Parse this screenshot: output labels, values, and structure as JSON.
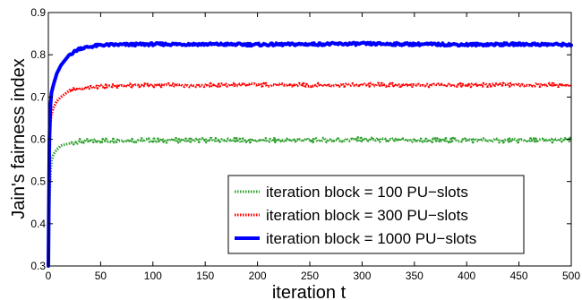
{
  "chart_data": {
    "type": "line",
    "title": "",
    "xlabel": "iteration t",
    "ylabel": "Jain's fairness index",
    "xlim": [
      0,
      500
    ],
    "ylim": [
      0.3,
      0.9
    ],
    "x_ticks": [
      0,
      50,
      100,
      150,
      200,
      250,
      300,
      350,
      400,
      450,
      500
    ],
    "y_ticks": [
      0.3,
      0.4,
      0.5,
      0.6,
      0.7,
      0.8,
      0.9
    ],
    "x_tick_labels": [
      "0",
      "50",
      "100",
      "150",
      "200",
      "250",
      "300",
      "350",
      "400",
      "450",
      "500"
    ],
    "y_tick_labels": [
      "0.3",
      "0.4",
      "0.5",
      "0.6",
      "0.7",
      "0.8",
      "0.9"
    ],
    "grid": false,
    "legend_position": "bottom-right",
    "series": [
      {
        "name": "iteration block = 100 PU−slots",
        "color": "#2ea02e",
        "style": "dotted",
        "x": [
          0,
          1,
          2,
          3,
          5,
          8,
          12,
          20,
          30,
          50,
          75,
          100,
          150,
          200,
          250,
          300,
          350,
          400,
          450,
          500
        ],
        "y": [
          0.3,
          0.45,
          0.52,
          0.55,
          0.565,
          0.575,
          0.585,
          0.59,
          0.595,
          0.597,
          0.598,
          0.597,
          0.598,
          0.597,
          0.598,
          0.599,
          0.597,
          0.598,
          0.597,
          0.598
        ]
      },
      {
        "name": "iteration block = 300 PU−slots",
        "color": "#ff0000",
        "style": "dotted",
        "x": [
          0,
          1,
          2,
          3,
          5,
          8,
          12,
          20,
          30,
          50,
          75,
          100,
          150,
          200,
          250,
          300,
          350,
          400,
          450,
          500
        ],
        "y": [
          0.3,
          0.55,
          0.64,
          0.66,
          0.675,
          0.69,
          0.7,
          0.715,
          0.72,
          0.725,
          0.727,
          0.728,
          0.728,
          0.729,
          0.728,
          0.729,
          0.728,
          0.728,
          0.729,
          0.728
        ]
      },
      {
        "name": "iteration block = 1000 PU−slots",
        "color": "#0000ff",
        "style": "solid",
        "x": [
          0,
          1,
          2,
          3,
          5,
          8,
          12,
          20,
          30,
          50,
          75,
          100,
          150,
          200,
          250,
          300,
          350,
          400,
          450,
          500
        ],
        "y": [
          0.3,
          0.6,
          0.68,
          0.71,
          0.73,
          0.755,
          0.775,
          0.8,
          0.815,
          0.823,
          0.824,
          0.825,
          0.825,
          0.824,
          0.825,
          0.826,
          0.825,
          0.824,
          0.825,
          0.824
        ]
      }
    ]
  }
}
